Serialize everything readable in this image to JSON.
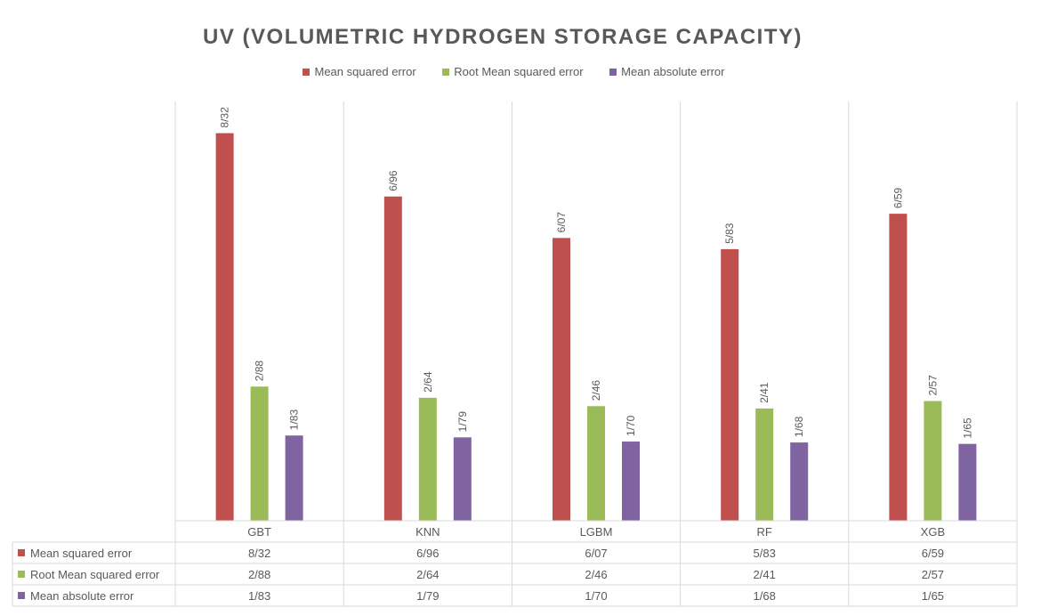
{
  "chart_data": {
    "type": "bar",
    "title": "UV (VOLUMETRIC HYDROGEN STORAGE CAPACITY)",
    "categories": [
      "GBT",
      "KNN",
      "LGBM",
      "RF",
      "XGB"
    ],
    "series": [
      {
        "name": "Mean squared error",
        "color": "#c0504d",
        "values": [
          8.32,
          6.96,
          6.07,
          5.83,
          6.59
        ],
        "labels": [
          "8/32",
          "6/96",
          "6/07",
          "5/83",
          "6/59"
        ]
      },
      {
        "name": "Root Mean squared error",
        "color": "#9bbb59",
        "values": [
          2.88,
          2.64,
          2.46,
          2.41,
          2.57
        ],
        "labels": [
          "2/88",
          "2/64",
          "2/46",
          "2/41",
          "2/57"
        ]
      },
      {
        "name": "Mean absolute error",
        "color": "#8064a2",
        "values": [
          1.83,
          1.79,
          1.7,
          1.68,
          1.65
        ],
        "labels": [
          "1/83",
          "1/79",
          "1/70",
          "1/68",
          "1/65"
        ]
      }
    ],
    "ylim": [
      0,
      9
    ],
    "legend_position": "top",
    "data_table": true,
    "y_axis_visible": false
  }
}
